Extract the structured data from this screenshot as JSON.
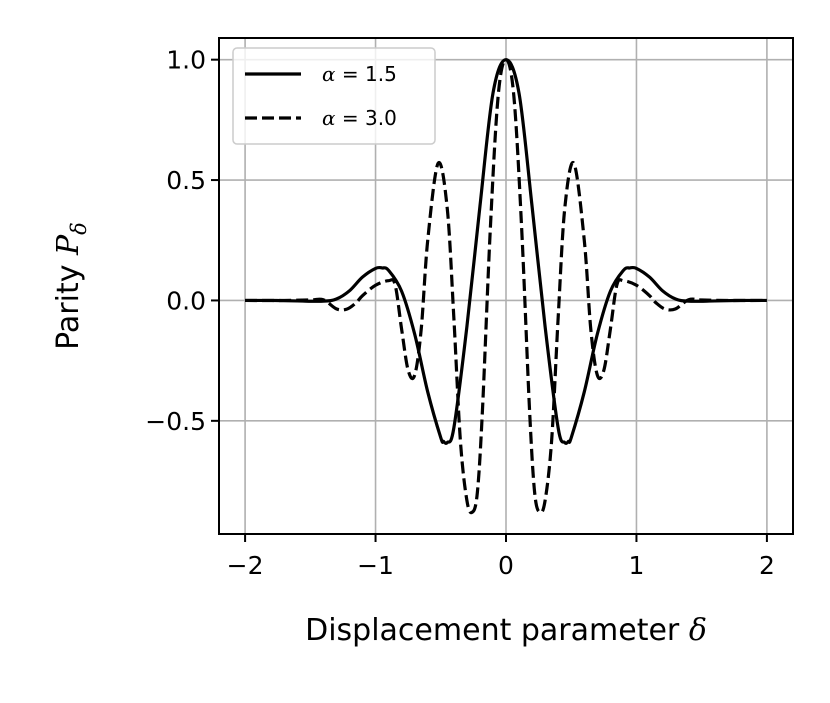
{
  "chart_data": {
    "type": "line",
    "title": "",
    "xlabel": "Displacement parameter",
    "xlabel_symbol": "δ",
    "ylabel": "Parity",
    "ylabel_symbol": "P",
    "ylabel_subscript": "δ",
    "xlim": [
      -2.2,
      2.2
    ],
    "ylim": [
      -0.97,
      1.09
    ],
    "xticks": [
      -2,
      -1,
      0,
      1,
      2
    ],
    "xtick_labels": [
      "−2",
      "−1",
      "0",
      "1",
      "2"
    ],
    "yticks": [
      -0.5,
      0.0,
      0.5,
      1.0
    ],
    "ytick_labels": [
      "−0.5",
      "0.0",
      "0.5",
      "1.0"
    ],
    "grid": true,
    "legend_position": "top-left",
    "series": [
      {
        "name": "α = 1.5",
        "symbol": "α",
        "value_text": "1.5",
        "style": "solid",
        "color": "#000000",
        "x": [
          -2.0,
          -1.8,
          -1.6,
          -1.4,
          -1.3,
          -1.2,
          -1.1,
          -1.0,
          -0.95,
          -0.9,
          -0.8,
          -0.7,
          -0.6,
          -0.5,
          -0.48,
          -0.45,
          -0.4,
          -0.3,
          -0.2,
          -0.1,
          0.0,
          0.1,
          0.2,
          0.3,
          0.4,
          0.45,
          0.48,
          0.5,
          0.6,
          0.7,
          0.8,
          0.9,
          0.95,
          1.0,
          1.1,
          1.2,
          1.3,
          1.4,
          1.6,
          1.8,
          2.0
        ],
        "y": [
          0.0,
          0.0,
          -0.002,
          -0.003,
          0.006,
          0.04,
          0.097,
          0.133,
          0.135,
          0.125,
          0.038,
          -0.14,
          -0.38,
          -0.57,
          -0.585,
          -0.59,
          -0.53,
          -0.11,
          0.39,
          0.86,
          1.0,
          0.86,
          0.39,
          -0.11,
          -0.53,
          -0.59,
          -0.585,
          -0.57,
          -0.38,
          -0.14,
          0.038,
          0.125,
          0.135,
          0.133,
          0.097,
          0.04,
          0.006,
          -0.003,
          -0.002,
          0.0,
          0.0
        ]
      },
      {
        "name": "α = 3.0",
        "symbol": "α",
        "value_text": "3.0",
        "style": "dashed",
        "color": "#000000",
        "x": [
          -2.0,
          -1.7,
          -1.5,
          -1.4,
          -1.3,
          -1.22,
          -1.15,
          -1.1,
          -1.0,
          -0.9,
          -0.85,
          -0.8,
          -0.75,
          -0.7,
          -0.65,
          -0.6,
          -0.52,
          -0.45,
          -0.4,
          -0.35,
          -0.3,
          -0.26,
          -0.22,
          -0.18,
          -0.12,
          -0.06,
          0.0,
          0.06,
          0.12,
          0.18,
          0.22,
          0.26,
          0.3,
          0.35,
          0.4,
          0.45,
          0.52,
          0.6,
          0.65,
          0.7,
          0.75,
          0.8,
          0.85,
          0.9,
          1.0,
          1.1,
          1.15,
          1.22,
          1.3,
          1.4,
          1.5,
          1.7,
          2.0
        ],
        "y": [
          0.0,
          0.0,
          0.002,
          0.003,
          -0.035,
          -0.036,
          -0.01,
          0.02,
          0.063,
          0.082,
          0.065,
          -0.12,
          -0.29,
          -0.31,
          -0.12,
          0.25,
          0.57,
          0.38,
          -0.07,
          -0.58,
          -0.83,
          -0.88,
          -0.8,
          -0.45,
          0.3,
          0.85,
          1.0,
          0.85,
          0.3,
          -0.45,
          -0.8,
          -0.88,
          -0.83,
          -0.58,
          -0.07,
          0.38,
          0.57,
          0.25,
          -0.12,
          -0.31,
          -0.29,
          -0.12,
          0.065,
          0.082,
          0.063,
          0.02,
          -0.01,
          -0.036,
          -0.035,
          0.003,
          0.002,
          0.0,
          0.0
        ]
      }
    ]
  }
}
